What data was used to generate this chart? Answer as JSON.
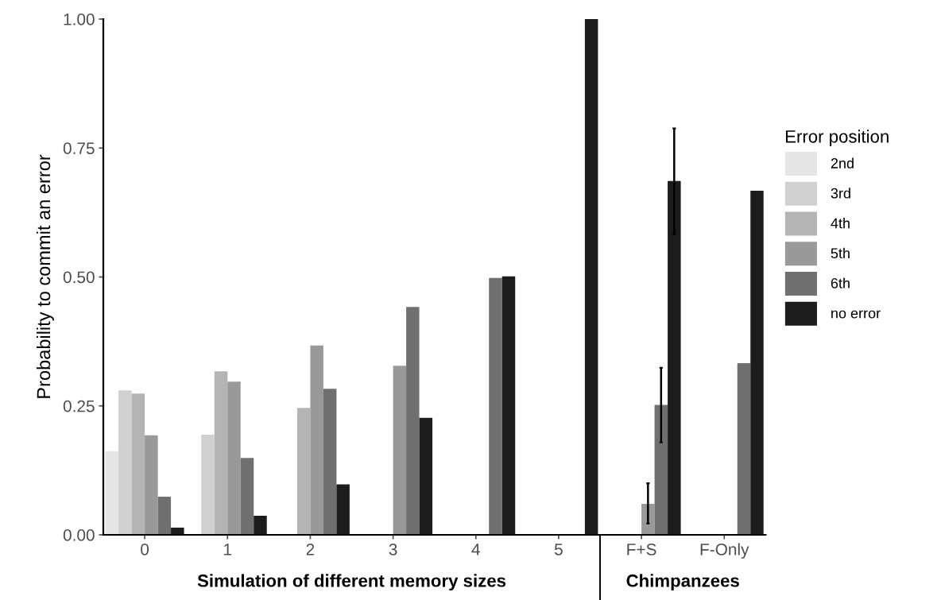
{
  "chart_data": [
    {
      "type": "bar",
      "xlabel": "Simulation of different memory sizes",
      "ylabel": "Probability to commit an error",
      "categories": [
        "0",
        "1",
        "2",
        "3",
        "4",
        "5"
      ],
      "ylim": [
        0,
        1.0
      ],
      "yticks": [
        {
          "value": 0,
          "label": "0.00"
        },
        {
          "value": 0.25,
          "label": "0.25"
        },
        {
          "value": 0.5,
          "label": "0.50"
        },
        {
          "value": 0.75,
          "label": "0.75"
        },
        {
          "value": 1.0,
          "label": "1.00"
        }
      ],
      "grid": false,
      "legend": "right",
      "legend_title": "Error position",
      "series": [
        {
          "name": "2nd",
          "color": "#e5e5e5",
          "values": [
            0.162,
            null,
            null,
            null,
            null,
            null
          ]
        },
        {
          "name": "3rd",
          "color": "#d0d0d0",
          "values": [
            0.28,
            0.194,
            null,
            null,
            null,
            null
          ]
        },
        {
          "name": "4th",
          "color": "#b4b4b4",
          "values": [
            0.274,
            0.317,
            0.246,
            null,
            null,
            null
          ]
        },
        {
          "name": "5th",
          "color": "#999999",
          "values": [
            0.193,
            0.297,
            0.367,
            0.328,
            null,
            null
          ]
        },
        {
          "name": "6th",
          "color": "#707070",
          "values": [
            0.074,
            0.149,
            0.283,
            0.442,
            0.498,
            null
          ]
        },
        {
          "name": "no error",
          "color": "#1c1c1c",
          "values": [
            0.014,
            0.037,
            0.098,
            0.227,
            0.501,
            1.0
          ]
        }
      ]
    },
    {
      "type": "bar",
      "xlabel": "Chimpanzees",
      "categories": [
        "F+S",
        "F-Only"
      ],
      "ylim": [
        0,
        1.0
      ],
      "tick_labels": "x",
      "grid": false,
      "series": [
        {
          "color": "#e5e5e5",
          "values": [
            null,
            null
          ]
        },
        {
          "color": "#d0d0d0",
          "values": [
            null,
            null
          ]
        },
        {
          "color": "#b4b4b4",
          "values": [
            null,
            null
          ]
        },
        {
          "color": "#999999",
          "values": [
            0.06,
            null
          ],
          "errors": [
            [
              0.022,
              0.1
            ],
            null
          ]
        },
        {
          "color": "#707070",
          "values": [
            0.252,
            0.333
          ],
          "errors": [
            [
              0.179,
              0.324
            ],
            null
          ]
        },
        {
          "color": "#1c1c1c",
          "values": [
            0.686,
            0.667
          ],
          "errors": [
            [
              0.583,
              0.788
            ],
            null
          ]
        }
      ]
    }
  ]
}
